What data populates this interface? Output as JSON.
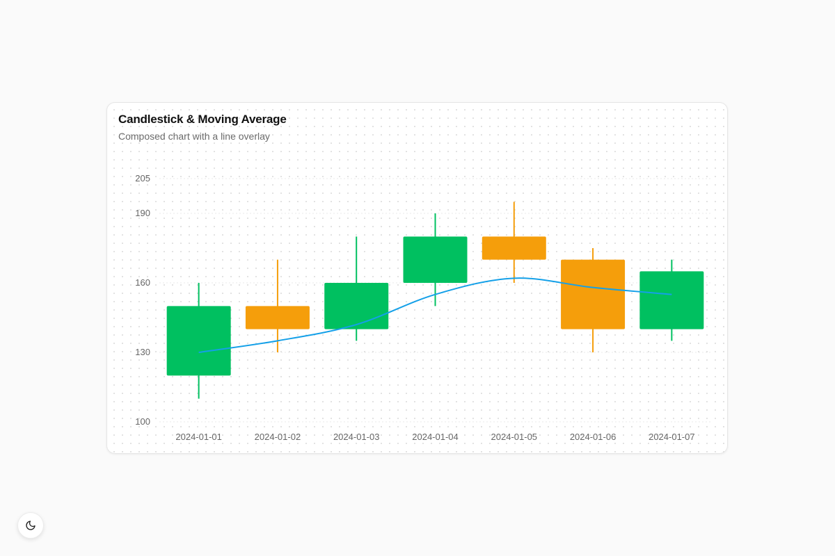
{
  "card": {
    "title": "Candlestick & Moving Average",
    "subtitle": "Composed chart with a line overlay"
  },
  "chart_data": {
    "type": "candlestick",
    "title": "Candlestick & Moving Average",
    "subtitle": "Composed chart with a line overlay",
    "xlabel": "",
    "ylabel": "",
    "categories": [
      "2024-01-01",
      "2024-01-02",
      "2024-01-03",
      "2024-01-04",
      "2024-01-05",
      "2024-01-06",
      "2024-01-07"
    ],
    "y_ticks": [
      100,
      130,
      160,
      190,
      205
    ],
    "ylim": [
      100,
      205
    ],
    "candles": [
      {
        "date": "2024-01-01",
        "open": 120,
        "close": 150,
        "high": 160,
        "low": 110
      },
      {
        "date": "2024-01-02",
        "open": 150,
        "close": 140,
        "high": 170,
        "low": 130
      },
      {
        "date": "2024-01-03",
        "open": 140,
        "close": 160,
        "high": 180,
        "low": 135
      },
      {
        "date": "2024-01-04",
        "open": 160,
        "close": 180,
        "high": 190,
        "low": 150
      },
      {
        "date": "2024-01-05",
        "open": 180,
        "close": 170,
        "high": 195,
        "low": 160
      },
      {
        "date": "2024-01-06",
        "open": 170,
        "close": 140,
        "high": 175,
        "low": 130
      },
      {
        "date": "2024-01-07",
        "open": 140,
        "close": 165,
        "high": 170,
        "low": 135
      }
    ],
    "moving_average": [
      130,
      135,
      142,
      155,
      162,
      158,
      155
    ],
    "colors": {
      "up": "#00c060",
      "down": "#f59e0b",
      "line": "#14a0e8",
      "axis_text": "#666666",
      "grid": "#e9e9e9"
    },
    "grid": true,
    "legend": "none"
  },
  "theme_toggle": {
    "icon": "moon-icon"
  }
}
